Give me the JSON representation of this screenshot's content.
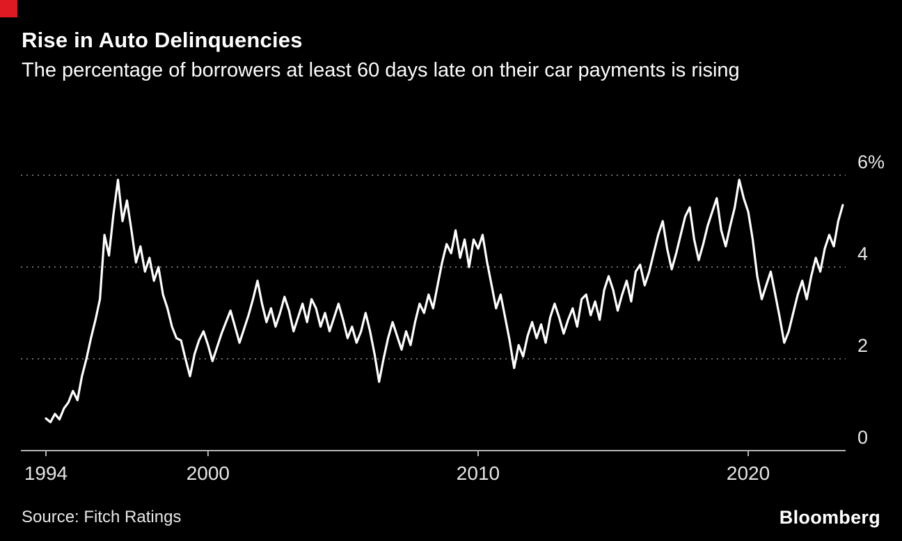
{
  "page": {
    "title": "Rise in Auto Delinquencies",
    "subtitle": "The percentage of borrowers at least 60 days late on their car payments is rising",
    "source": "Source: Fitch Ratings",
    "brand": "Bloomberg",
    "accent_red": "#e01a23",
    "background": "#000000"
  },
  "chart_data": {
    "type": "line",
    "title": "Rise in Auto Delinquencies",
    "subtitle": "The percentage of borrowers at least 60 days late on their car payments is rising",
    "source": "Source: Fitch Ratings",
    "line_color": "#ffffff",
    "grid_color": "#6e6e6e",
    "axis_color": "#b5b5b5",
    "tick_label_color": "#e6e6e6",
    "grid_style": "dotted",
    "legend": "none",
    "xlabel": "",
    "ylabel": "",
    "xlim": [
      1993.7,
      2023.8
    ],
    "ylim": [
      0,
      6.6
    ],
    "x_ticks": [
      1994,
      2000,
      2010,
      2020
    ],
    "y_ticks": [
      {
        "value": 6,
        "label": "6%"
      },
      {
        "value": 4,
        "label": "4"
      },
      {
        "value": 2,
        "label": "2"
      },
      {
        "value": 0,
        "label": "0"
      }
    ],
    "series": [
      {
        "name": "Borrowers at least 60 days late on car payments (%)",
        "start_year": 1994,
        "points_per_year": 6,
        "values": [
          0.7,
          0.62,
          0.8,
          0.68,
          0.92,
          1.05,
          1.3,
          1.1,
          1.62,
          2.0,
          2.45,
          2.85,
          3.3,
          4.7,
          4.25,
          5.15,
          5.9,
          5.0,
          5.45,
          4.8,
          4.1,
          4.45,
          3.9,
          4.2,
          3.7,
          4.0,
          3.4,
          3.1,
          2.7,
          2.45,
          2.4,
          2.0,
          1.62,
          2.1,
          2.4,
          2.6,
          2.3,
          1.95,
          2.25,
          2.55,
          2.8,
          3.05,
          2.7,
          2.35,
          2.65,
          2.95,
          3.3,
          3.7,
          3.2,
          2.8,
          3.1,
          2.7,
          3.0,
          3.35,
          3.05,
          2.6,
          2.9,
          3.2,
          2.8,
          3.3,
          3.1,
          2.7,
          3.0,
          2.6,
          2.9,
          3.2,
          2.85,
          2.45,
          2.7,
          2.35,
          2.6,
          3.0,
          2.6,
          2.1,
          1.5,
          2.0,
          2.45,
          2.8,
          2.5,
          2.2,
          2.6,
          2.3,
          2.8,
          3.2,
          3.0,
          3.4,
          3.1,
          3.6,
          4.1,
          4.5,
          4.3,
          4.8,
          4.2,
          4.6,
          4.0,
          4.6,
          4.4,
          4.7,
          4.1,
          3.6,
          3.1,
          3.4,
          2.9,
          2.4,
          1.8,
          2.3,
          2.05,
          2.5,
          2.8,
          2.45,
          2.75,
          2.35,
          2.9,
          3.2,
          2.9,
          2.55,
          2.85,
          3.1,
          2.7,
          3.3,
          3.4,
          2.95,
          3.25,
          2.85,
          3.5,
          3.8,
          3.5,
          3.05,
          3.4,
          3.7,
          3.25,
          3.9,
          4.05,
          3.6,
          3.9,
          4.3,
          4.7,
          5.0,
          4.4,
          3.95,
          4.3,
          4.7,
          5.1,
          5.3,
          4.6,
          4.15,
          4.5,
          4.9,
          5.2,
          5.5,
          4.8,
          4.45,
          4.9,
          5.3,
          5.9,
          5.5,
          5.2,
          4.6,
          3.8,
          3.3,
          3.6,
          3.9,
          3.4,
          2.9,
          2.35,
          2.6,
          3.0,
          3.4,
          3.7,
          3.3,
          3.8,
          4.2,
          3.9,
          4.4,
          4.7,
          4.45,
          5.0,
          5.35
        ]
      }
    ]
  }
}
